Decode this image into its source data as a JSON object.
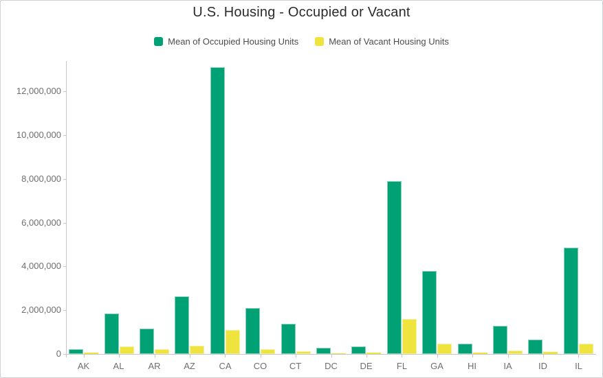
{
  "title": "U.S. Housing - Occupied or Vacant",
  "colors": {
    "occupied": "#00a175",
    "occupied_border": "#86d1b8",
    "vacant": "#efe33d",
    "vacant_border": "#f5f0a0",
    "axis_line": "#c6c6c6",
    "axis_text": "#6e6e6e",
    "title_text": "#2b2b2b",
    "legend_text": "#4c4c4c",
    "canvas_border": "#cdd1d4"
  },
  "legend": {
    "items": [
      {
        "label": "Mean of Occupied Housing Units",
        "color": "#00a175"
      },
      {
        "label": "Mean of Vacant Housing Units",
        "color": "#efe33d"
      }
    ]
  },
  "chart_data": {
    "type": "bar",
    "title": "U.S. Housing - Occupied or Vacant",
    "xlabel": "",
    "ylabel": "",
    "grid": false,
    "legend_position": "top",
    "categories": [
      "AK",
      "AL",
      "AR",
      "AZ",
      "CA",
      "CO",
      "CT",
      "DC",
      "DE",
      "FL",
      "GA",
      "HI",
      "IA",
      "ID",
      "IL"
    ],
    "series": [
      {
        "name": "Mean of Occupied Housing Units",
        "color": "#00a175",
        "border": "#86d1b8",
        "values": [
          230000,
          1860000,
          1150000,
          2620000,
          13100000,
          2100000,
          1370000,
          290000,
          360000,
          7900000,
          3800000,
          460000,
          1270000,
          650000,
          4860000
        ]
      },
      {
        "name": "Mean of Vacant Housing Units",
        "color": "#efe33d",
        "border": "#f5f0a0",
        "values": [
          60000,
          360000,
          205000,
          380000,
          1100000,
          205000,
          125000,
          30000,
          75000,
          1600000,
          480000,
          75000,
          145000,
          95000,
          480000
        ]
      }
    ],
    "ylim": [
      0,
      13380000
    ],
    "yticks": [
      {
        "value": 0,
        "label": "0"
      },
      {
        "value": 2000000,
        "label": "2,000,000"
      },
      {
        "value": 4000000,
        "label": "4,000,000"
      },
      {
        "value": 6000000,
        "label": "6,000,000"
      },
      {
        "value": 8000000,
        "label": "8,000,000"
      },
      {
        "value": 10000000,
        "label": "10,000,000"
      },
      {
        "value": 12000000,
        "label": "12,000,000"
      }
    ]
  }
}
